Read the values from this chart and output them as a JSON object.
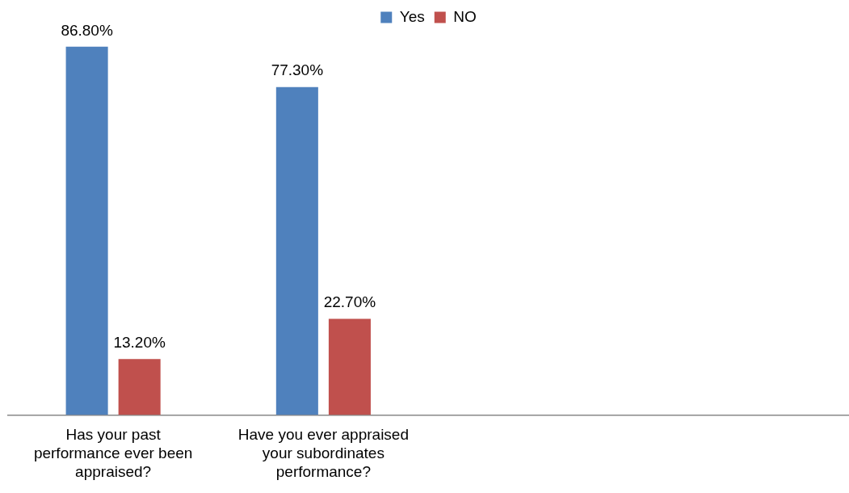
{
  "chart_data": {
    "type": "bar",
    "categories": [
      "Has your past performance ever been appraised?",
      "Have you ever appraised your subordinates performance?",
      null,
      null
    ],
    "series": [
      {
        "name": "Yes",
        "color": "#4f81bd",
        "values": [
          86.8,
          77.3,
          null,
          null
        ],
        "value_labels": [
          "86.80%",
          "77.30%",
          null,
          null
        ]
      },
      {
        "name": "NO",
        "color": "#c0504d",
        "values": [
          13.2,
          22.7,
          null,
          null
        ],
        "value_labels": [
          "13.20%",
          "22.70%",
          null,
          null
        ]
      }
    ],
    "tick_labels": "x",
    "grid": false,
    "legend": "top"
  }
}
